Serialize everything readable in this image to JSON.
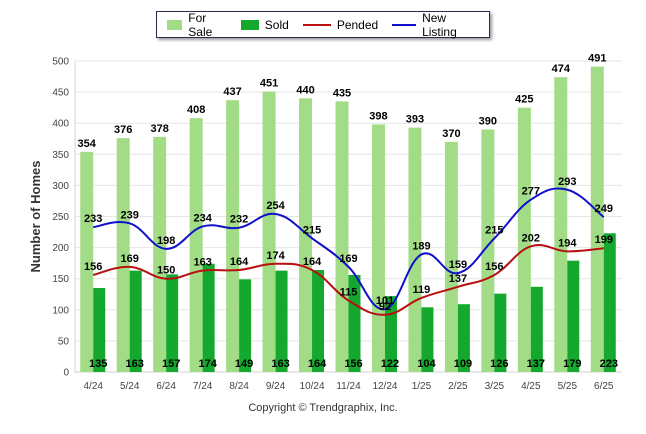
{
  "chart_data": {
    "type": "bar",
    "categories": [
      "4/24",
      "5/24",
      "6/24",
      "7/24",
      "8/24",
      "9/24",
      "10/24",
      "11/24",
      "12/24",
      "1/25",
      "2/25",
      "3/25",
      "4/25",
      "5/25",
      "6/25"
    ],
    "series": [
      {
        "name": "For Sale",
        "type": "bar",
        "color": "#a3dc87",
        "values": [
          354,
          376,
          378,
          408,
          437,
          451,
          440,
          435,
          398,
          393,
          370,
          390,
          425,
          474,
          491
        ]
      },
      {
        "name": "Sold",
        "type": "bar",
        "color": "#14a82e",
        "values": [
          135,
          163,
          157,
          174,
          149,
          163,
          164,
          156,
          122,
          104,
          109,
          126,
          137,
          179,
          223
        ]
      },
      {
        "name": "Pended",
        "type": "line",
        "color": "#b81010",
        "values": [
          156,
          169,
          150,
          163,
          164,
          174,
          164,
          115,
          92,
          119,
          137,
          156,
          202,
          194,
          199
        ]
      },
      {
        "name": "New Listing",
        "type": "line",
        "color": "#1010cc",
        "values": [
          233,
          239,
          198,
          234,
          232,
          254,
          215,
          169,
          101,
          189,
          159,
          215,
          277,
          293,
          249
        ]
      }
    ],
    "ylabel": "Number of Homes",
    "xlabel": "",
    "ylim": [
      0,
      500
    ],
    "yticks": [
      0,
      50,
      100,
      150,
      200,
      250,
      300,
      350,
      400,
      450,
      500
    ],
    "grid": true,
    "legend_placement": "top"
  },
  "footer": {
    "copyright": "Copyright © Trendgraphix, Inc."
  }
}
